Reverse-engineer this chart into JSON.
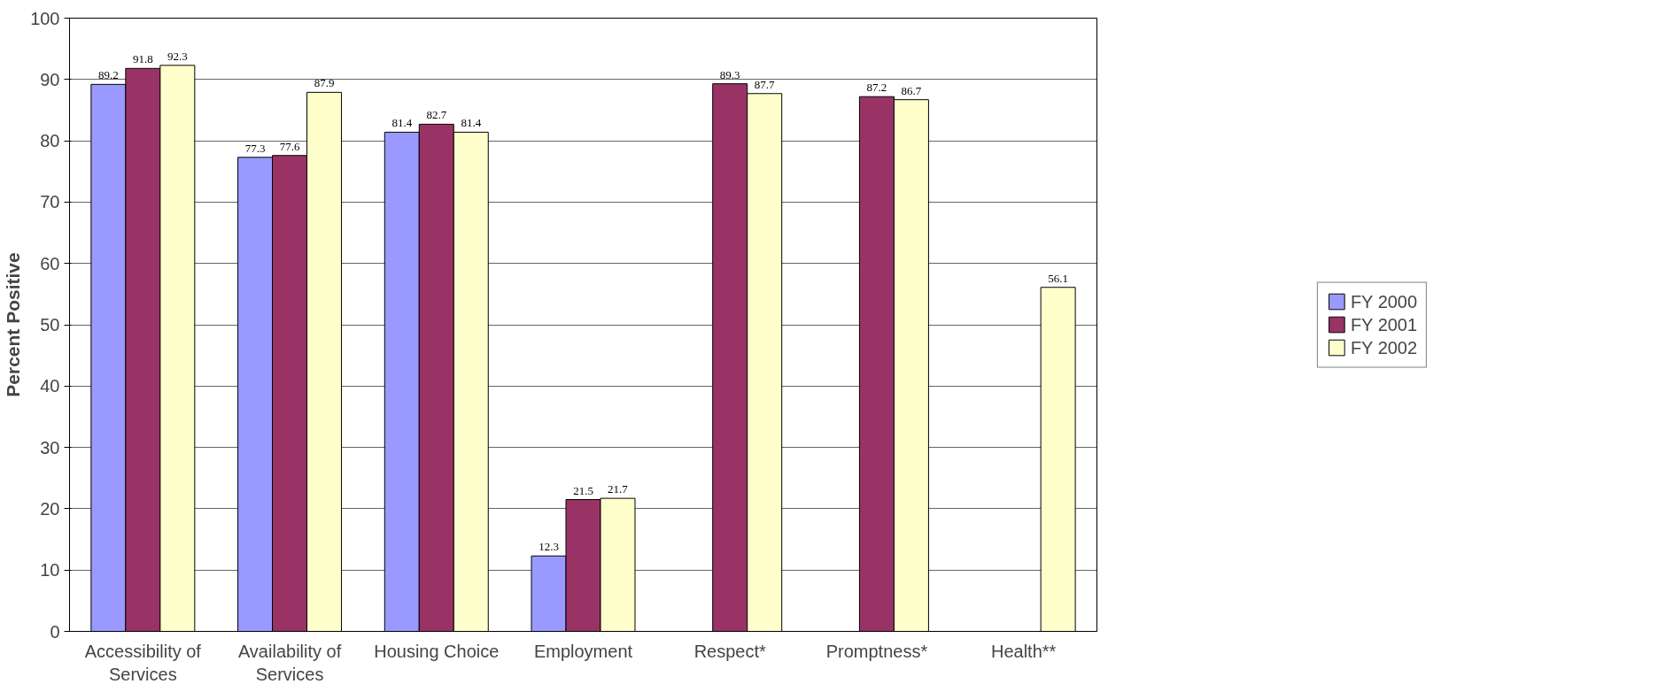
{
  "chart_data": {
    "type": "bar",
    "ylabel": "Percent Positive",
    "categories": [
      "Accessibility of Services",
      "Availability of Services",
      "Housing Choice",
      "Employment",
      "Respect*",
      "Promptness*",
      "Health**"
    ],
    "series": [
      {
        "name": "FY 2000",
        "color": "#9999ff",
        "values": [
          89.2,
          77.3,
          81.4,
          12.3,
          null,
          null,
          null
        ]
      },
      {
        "name": "FY 2001",
        "color": "#993366",
        "values": [
          91.8,
          77.6,
          82.7,
          21.5,
          89.3,
          87.2,
          null
        ]
      },
      {
        "name": "FY 2002",
        "color": "#ffffcc",
        "values": [
          92.3,
          87.9,
          81.4,
          21.7,
          87.7,
          86.7,
          56.1
        ]
      }
    ],
    "ylim": [
      0,
      100
    ],
    "yticks": [
      0,
      10,
      20,
      30,
      40,
      50,
      60,
      70,
      80,
      90,
      100
    ],
    "grid": "y",
    "legend": "right",
    "data_labels": true
  }
}
